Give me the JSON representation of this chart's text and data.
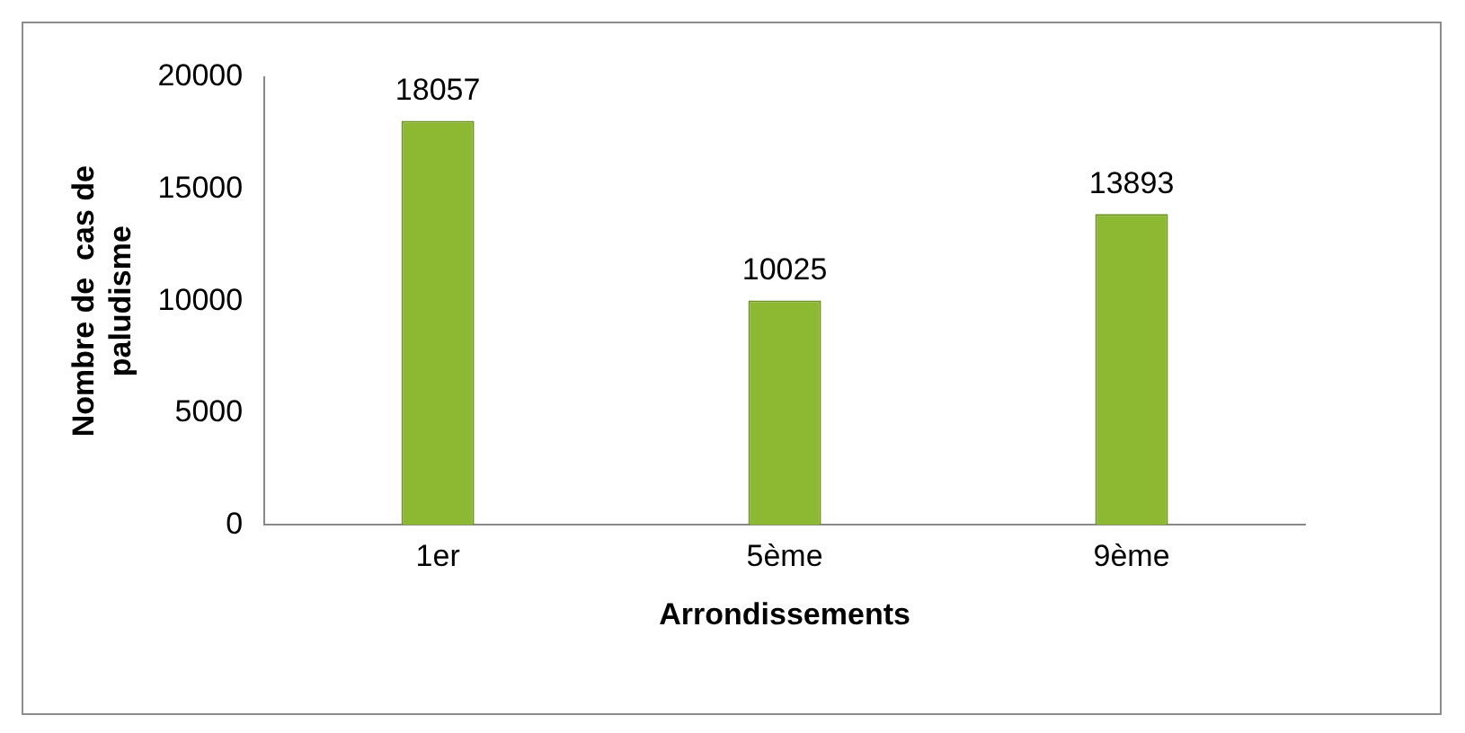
{
  "chart_data": {
    "type": "bar",
    "categories": [
      "1er",
      "5ème",
      "9ème"
    ],
    "values": [
      18057,
      10025,
      13893
    ],
    "color": "#8db832",
    "xlabel": "Arrondissements",
    "ylabel": "Nombre de  cas de paludisme",
    "ylim": [
      0,
      20000
    ],
    "yticks": [
      0,
      5000,
      10000,
      15000,
      20000
    ],
    "grid": false,
    "data_labels": true,
    "legend": false
  }
}
